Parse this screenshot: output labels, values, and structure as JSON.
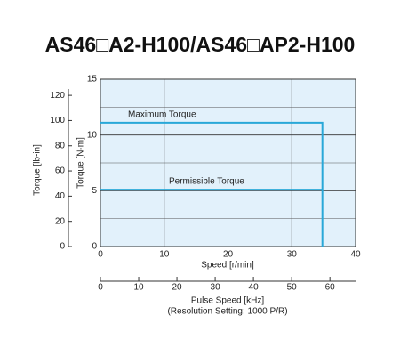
{
  "chart_data": {
    "type": "line",
    "title": "AS46□A2-H100/AS46□AP2-H100",
    "xlabel": "Speed [r/min]",
    "ylabel": "Torque [N·m]",
    "y2label": "Torque [lb-in]",
    "x2label": "Pulse Speed [kHz]",
    "x2note": "(Resolution Setting: 1000 P/R)",
    "xlim": [
      0,
      40
    ],
    "xticks": [
      0,
      10,
      20,
      30,
      40
    ],
    "ylim": [
      0,
      15
    ],
    "yticks": [
      0,
      5,
      10,
      15
    ],
    "y2lim": [
      0,
      132.8
    ],
    "y2ticks": [
      0,
      20,
      40,
      60,
      80,
      100,
      120
    ],
    "x2lim": [
      0,
      66.7
    ],
    "x2ticks": [
      0,
      10,
      20,
      30,
      40,
      50,
      60
    ],
    "grid": true,
    "series": [
      {
        "name": "Maximum Torque",
        "color": "#29a8d8",
        "x": [
          0,
          34.8,
          34.8
        ],
        "values": [
          11.1,
          11.1,
          0
        ]
      },
      {
        "name": "Permissible Torque",
        "color": "#29a8d8",
        "x": [
          0,
          34.8
        ],
        "values": [
          5.1,
          5.1
        ]
      }
    ]
  }
}
